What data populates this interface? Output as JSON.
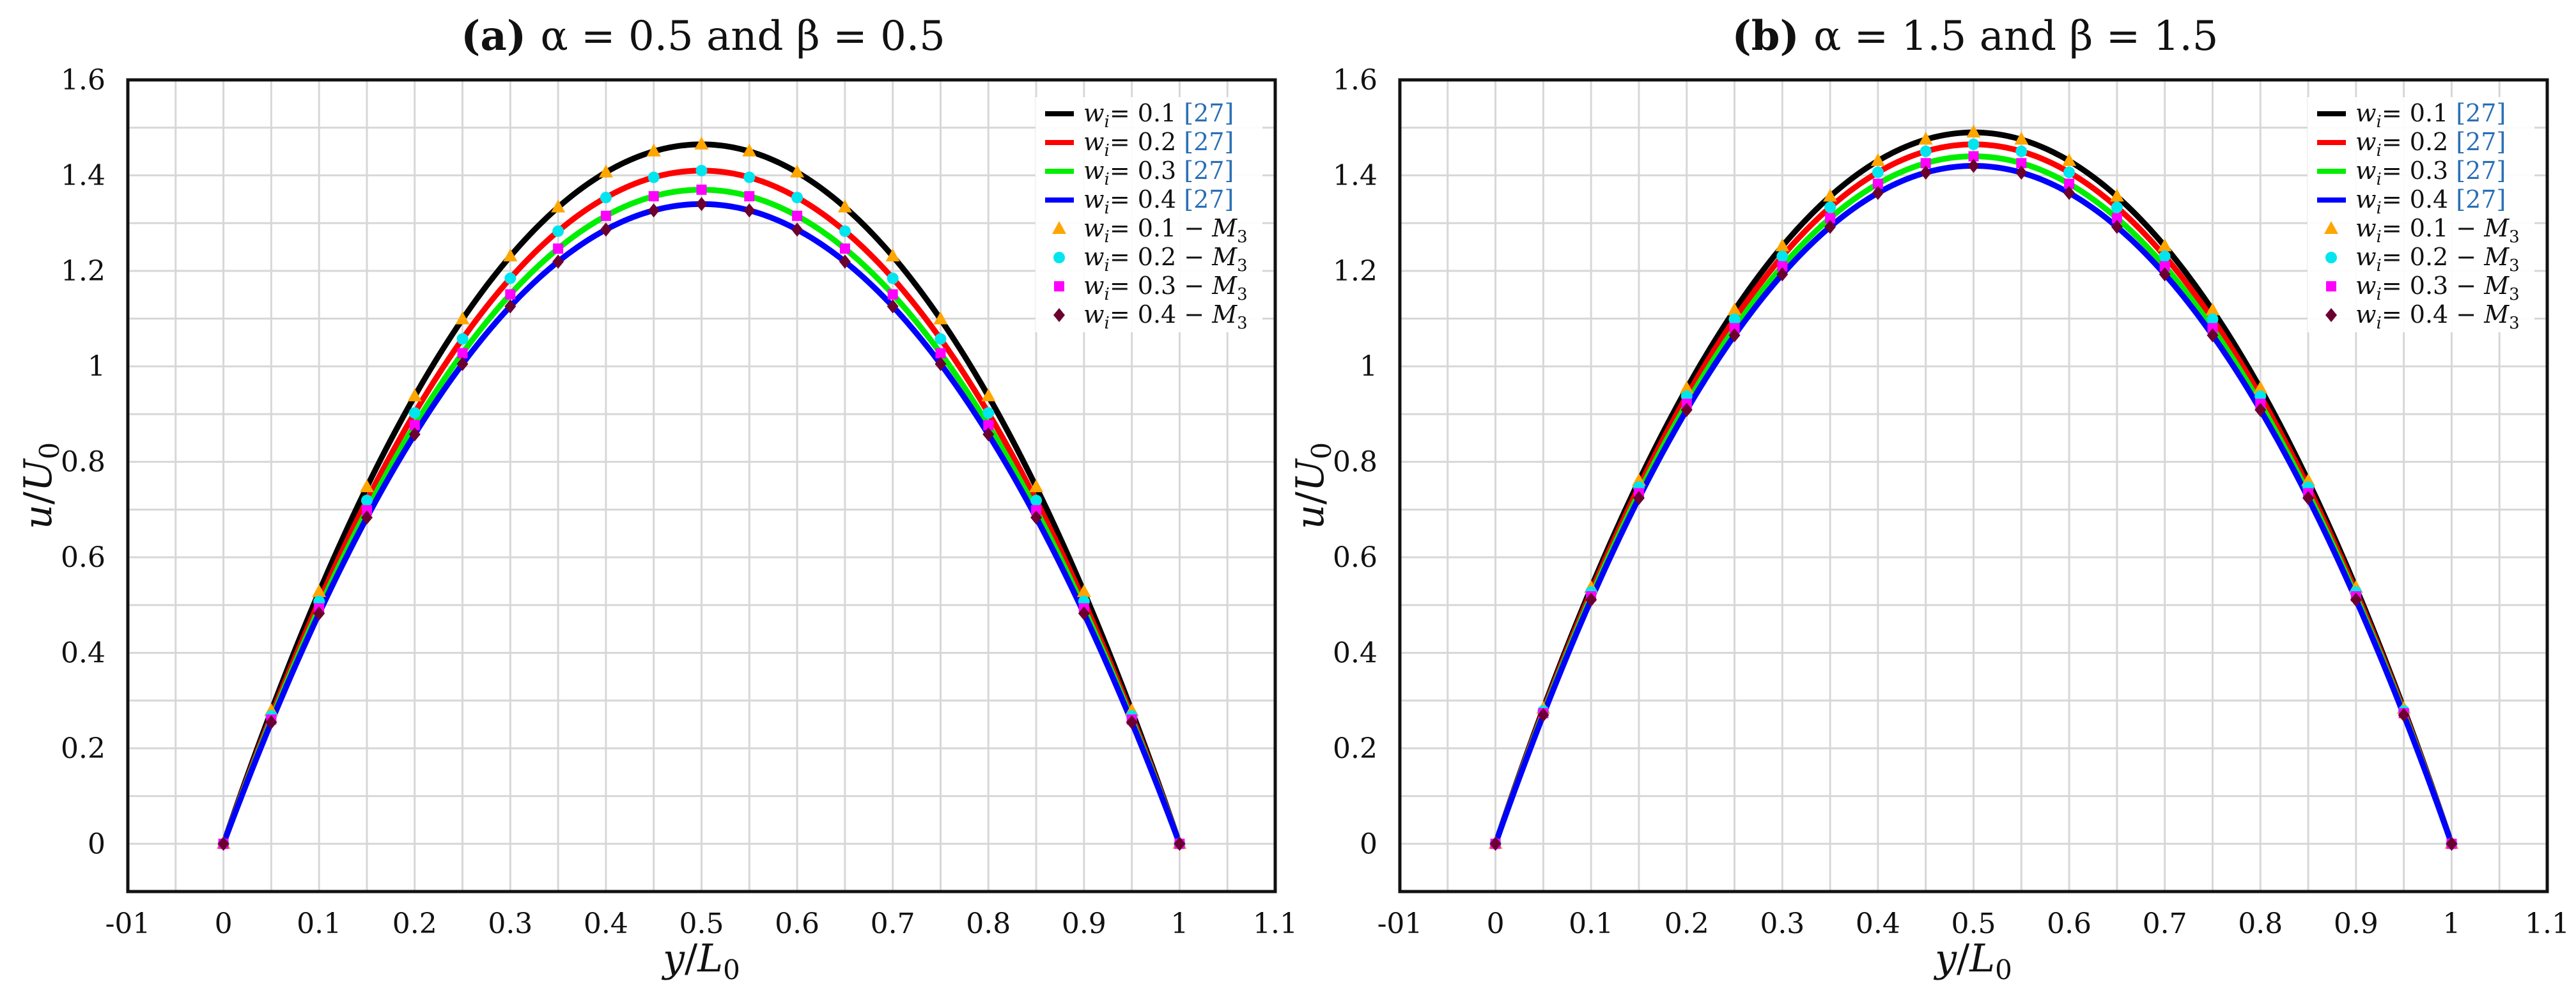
{
  "chart_data": [
    {
      "type": "line",
      "title_prefix": "(a)",
      "title": "α = 0.5 and β = 0.5",
      "xlabel": "y/L0",
      "ylabel": "u/U0",
      "xlim": [
        -0.1,
        1.1
      ],
      "ylim": [
        -0.1,
        1.6
      ],
      "xticks": [
        "-01",
        "0",
        "0.1",
        "0.2",
        "0.3",
        "0.4",
        "0.5",
        "0.6",
        "0.7",
        "0.8",
        "0.9",
        "1",
        "1.1"
      ],
      "yticks": [
        "0",
        "0.2",
        "0.4",
        "0.6",
        "0.8",
        "1",
        "1.2",
        "1.4",
        "1.6"
      ],
      "grid": true,
      "legend_position": "top-right",
      "series": [
        {
          "name": "w_i = 0.1 [27]",
          "kind": "line",
          "color": "#000000",
          "peak": 1.465
        },
        {
          "name": "w_i = 0.2 [27]",
          "kind": "line",
          "color": "#ff0000",
          "peak": 1.41
        },
        {
          "name": "w_i = 0.3 [27]",
          "kind": "line",
          "color": "#00ee00",
          "peak": 1.37
        },
        {
          "name": "w_i = 0.4 [27]",
          "kind": "line",
          "color": "#0000ff",
          "peak": 1.34
        },
        {
          "name": "w_i = 0.1 − M3",
          "kind": "markers",
          "marker": "triangle",
          "color": "#ffa500",
          "peak": 1.465
        },
        {
          "name": "w_i = 0.2 − M3",
          "kind": "markers",
          "marker": "circle",
          "color": "#00e5ee",
          "peak": 1.41
        },
        {
          "name": "w_i = 0.3 − M3",
          "kind": "markers",
          "marker": "square",
          "color": "#ff00ff",
          "peak": 1.37
        },
        {
          "name": "w_i = 0.4 − M3",
          "kind": "markers",
          "marker": "diamond",
          "color": "#6b0030",
          "peak": 1.34
        }
      ],
      "marker_x": [
        0,
        0.05,
        0.1,
        0.15,
        0.2,
        0.25,
        0.3,
        0.35,
        0.4,
        0.45,
        0.5,
        0.55,
        0.6,
        0.65,
        0.7,
        0.75,
        0.8,
        0.85,
        0.9,
        0.95,
        1
      ]
    },
    {
      "type": "line",
      "title_prefix": "(b)",
      "title": "α = 1.5 and β = 1.5",
      "xlabel": "y/L0",
      "ylabel": "u/U0",
      "xlim": [
        -0.1,
        1.1
      ],
      "ylim": [
        -0.1,
        1.6
      ],
      "xticks": [
        "-01",
        "0",
        "0.1",
        "0.2",
        "0.3",
        "0.4",
        "0.5",
        "0.6",
        "0.7",
        "0.8",
        "0.9",
        "1",
        "1.1"
      ],
      "yticks": [
        "0",
        "0.2",
        "0.4",
        "0.6",
        "0.8",
        "1",
        "1.2",
        "1.4",
        "1.6"
      ],
      "grid": true,
      "legend_position": "top-right",
      "series": [
        {
          "name": "w_i = 0.1 [27]",
          "kind": "line",
          "color": "#000000",
          "peak": 1.49
        },
        {
          "name": "w_i = 0.2 [27]",
          "kind": "line",
          "color": "#ff0000",
          "peak": 1.465
        },
        {
          "name": "w_i = 0.3 [27]",
          "kind": "line",
          "color": "#00ee00",
          "peak": 1.44
        },
        {
          "name": "w_i = 0.4 [27]",
          "kind": "line",
          "color": "#0000ff",
          "peak": 1.42
        },
        {
          "name": "w_i = 0.1 − M3",
          "kind": "markers",
          "marker": "triangle",
          "color": "#ffa500",
          "peak": 1.49
        },
        {
          "name": "w_i = 0.2 − M3",
          "kind": "markers",
          "marker": "circle",
          "color": "#00e5ee",
          "peak": 1.465
        },
        {
          "name": "w_i = 0.3 − M3",
          "kind": "markers",
          "marker": "square",
          "color": "#ff00ff",
          "peak": 1.44
        },
        {
          "name": "w_i = 0.4 − M3",
          "kind": "markers",
          "marker": "diamond",
          "color": "#6b0030",
          "peak": 1.42
        }
      ],
      "marker_x": [
        0,
        0.05,
        0.1,
        0.15,
        0.2,
        0.25,
        0.3,
        0.35,
        0.4,
        0.45,
        0.5,
        0.55,
        0.6,
        0.65,
        0.7,
        0.75,
        0.8,
        0.85,
        0.9,
        0.95,
        1
      ]
    }
  ]
}
